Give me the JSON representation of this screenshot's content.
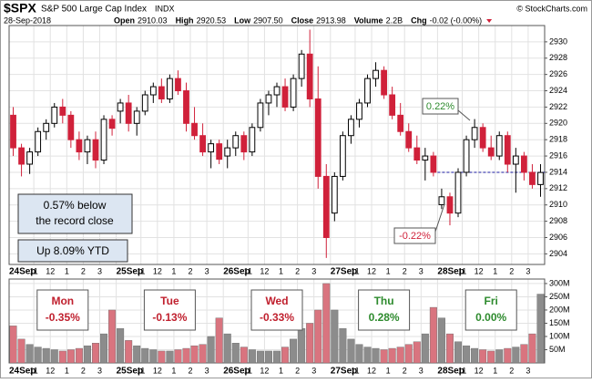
{
  "header": {
    "symbol": "$SPX",
    "name": "S&P 500 Large Cap Index",
    "exchange": "INDX",
    "date": "28-Sep-2018",
    "copyright": "© StockCharts.com",
    "stats": [
      {
        "label": "Open",
        "value": "2910.03"
      },
      {
        "label": "High",
        "value": "2920.53"
      },
      {
        "label": "Low",
        "value": "2907.50"
      },
      {
        "label": "Close",
        "value": "2913.98"
      },
      {
        "label": "Volume",
        "value": "2.2B"
      },
      {
        "label": "Chg",
        "value": "-0.02 (-0.00%)"
      }
    ]
  },
  "chart_data": [
    {
      "type": "candlestick",
      "open": [
        2921,
        2917,
        2915,
        2916.5,
        2919,
        2920,
        2922,
        2921,
        2918,
        2916.5,
        2918,
        2915.5,
        2920.5,
        2921.5,
        2922.5,
        2920,
        2921.5,
        2923.5,
        2924.5,
        2923,
        2925.5,
        2924,
        2920,
        2918.5,
        2916.5,
        2917.5,
        2916,
        2917,
        2918.5,
        2916.5,
        2919.5,
        2922.5,
        2923.5,
        2924.5,
        2922,
        2925.5,
        2928.5,
        2923,
        2913.5,
        2909,
        2913.5,
        2918.5,
        2920.5,
        2922.5,
        2925.5,
        2926.5,
        2923.5,
        2921,
        2919,
        2917,
        2915.5,
        2916,
        2910.03,
        2911,
        2909,
        2914,
        2918,
        2919.5,
        2917,
        2916,
        2918.5,
        2915,
        2916,
        2914,
        2912.5
      ],
      "high": [
        2922,
        2917.5,
        2917,
        2919.5,
        2920.5,
        2922.5,
        2923,
        2921.5,
        2919,
        2918.5,
        2919,
        2921,
        2921,
        2923,
        2923.5,
        2922,
        2924,
        2925,
        2925.5,
        2926,
        2926.5,
        2925,
        2922,
        2920,
        2918,
        2918,
        2918,
        2919,
        2919,
        2920,
        2923,
        2924,
        2925,
        2925.5,
        2926,
        2929,
        2931.5,
        2927,
        2915,
        2914,
        2919,
        2921,
        2923,
        2926,
        2927.5,
        2927,
        2924.5,
        2922.5,
        2920,
        2918.5,
        2917,
        2916.5,
        2912,
        2911.5,
        2914.5,
        2918.5,
        2920.53,
        2920,
        2918.5,
        2919,
        2919,
        2917,
        2916.5,
        2915,
        2915
      ],
      "low": [
        2916,
        2913.5,
        2913.8,
        2916,
        2918,
        2919.5,
        2920,
        2917,
        2915.5,
        2915,
        2914.5,
        2915,
        2918.5,
        2920,
        2919,
        2918.5,
        2921,
        2922.5,
        2922.5,
        2922.5,
        2923.5,
        2919,
        2918,
        2916,
        2914.5,
        2915,
        2914.5,
        2916,
        2915.5,
        2916,
        2919,
        2921,
        2922,
        2921.5,
        2921.5,
        2924.5,
        2922,
        2912,
        2903.5,
        2908,
        2913,
        2917.5,
        2919.5,
        2922,
        2924.5,
        2923,
        2920.5,
        2918.5,
        2916.5,
        2915,
        2913,
        2913.5,
        2909.5,
        2907.5,
        2908.5,
        2913.5,
        2917,
        2916.5,
        2915.5,
        2915.5,
        2914,
        2911.5,
        2913,
        2912,
        2911
      ],
      "close": [
        2917,
        2915,
        2916.5,
        2919,
        2920,
        2922,
        2921,
        2918,
        2916.5,
        2918,
        2915.5,
        2920.5,
        2919.4,
        2922.5,
        2920,
        2921.5,
        2923.5,
        2924.5,
        2923,
        2925.5,
        2924,
        2920,
        2918.5,
        2916.5,
        2917.5,
        2915.6,
        2917,
        2918.5,
        2916.5,
        2919.5,
        2922.5,
        2923.5,
        2924.5,
        2922,
        2925.5,
        2928.5,
        2923,
        2913.5,
        2906,
        2913.5,
        2918.5,
        2920.5,
        2922.5,
        2925.5,
        2926.5,
        2923.5,
        2921,
        2919,
        2917,
        2915.5,
        2916,
        2914,
        2911,
        2909,
        2914,
        2918,
        2919.5,
        2917,
        2916,
        2918.5,
        2915,
        2916,
        2914,
        2912.5,
        2913.98
      ],
      "up_color": "#000000",
      "down_color": "#d0213a",
      "ylim": [
        2902.7,
        2932
      ],
      "yticks": [
        2904,
        2906,
        2908,
        2910,
        2912,
        2914,
        2916,
        2918,
        2920,
        2922,
        2924,
        2926,
        2928,
        2930
      ],
      "xticks": [
        {
          "value": 0,
          "label": "24Sep"
        },
        {
          "value": 3,
          "label": "11"
        },
        {
          "value": 5,
          "label": "12"
        },
        {
          "value": 7,
          "label": "1"
        },
        {
          "value": 9,
          "label": "2"
        },
        {
          "value": 11,
          "label": "3"
        },
        {
          "value": 13,
          "label": "25Sep"
        },
        {
          "value": 16,
          "label": "11"
        },
        {
          "value": 18,
          "label": "12"
        },
        {
          "value": 20,
          "label": "1"
        },
        {
          "value": 22,
          "label": "2"
        },
        {
          "value": 24,
          "label": "3"
        },
        {
          "value": 26,
          "label": "26Sep"
        },
        {
          "value": 29,
          "label": "11"
        },
        {
          "value": 31,
          "label": "12"
        },
        {
          "value": 33,
          "label": "1"
        },
        {
          "value": 35,
          "label": "2"
        },
        {
          "value": 37,
          "label": "3"
        },
        {
          "value": 39,
          "label": "27Sep"
        },
        {
          "value": 42,
          "label": "11"
        },
        {
          "value": 44,
          "label": "12"
        },
        {
          "value": 46,
          "label": "1"
        },
        {
          "value": 48,
          "label": "2"
        },
        {
          "value": 50,
          "label": "3"
        },
        {
          "value": 52,
          "label": "28Sep"
        },
        {
          "value": 55,
          "label": "11"
        },
        {
          "value": 57,
          "label": "12"
        },
        {
          "value": 59,
          "label": "1"
        },
        {
          "value": 61,
          "label": "2"
        },
        {
          "value": 63,
          "label": "3"
        }
      ],
      "grid": true,
      "reference_line": 2914,
      "annotations": [
        "0.57% below",
        "the record close",
        "Up 8.09% YTD"
      ],
      "callouts": [
        {
          "text": "0.22%",
          "color": "#2e8b2e"
        },
        {
          "text": "-0.22%",
          "color": "#d0213a"
        }
      ]
    },
    {
      "type": "bar",
      "values": [
        140,
        90,
        70,
        60,
        55,
        50,
        45,
        50,
        55,
        65,
        75,
        110,
        200,
        130,
        85,
        65,
        55,
        50,
        45,
        45,
        50,
        55,
        65,
        70,
        100,
        170,
        110,
        75,
        60,
        50,
        45,
        45,
        45,
        60,
        90,
        130,
        150,
        200,
        300,
        200,
        130,
        90,
        70,
        60,
        55,
        50,
        55,
        60,
        70,
        80,
        110,
        210,
        170,
        110,
        80,
        65,
        55,
        50,
        45,
        50,
        55,
        60,
        70,
        110,
        260
      ],
      "up_color": "#8c8c8c",
      "down_color": "#d9747f",
      "ylim": [
        0,
        317
      ],
      "yticks": [
        {
          "value": 50,
          "label": "50M"
        },
        {
          "value": 100,
          "label": "100M"
        },
        {
          "value": 150,
          "label": "150M"
        },
        {
          "value": 200,
          "label": "200M"
        },
        {
          "value": 250,
          "label": "250M"
        },
        {
          "value": 300,
          "label": "300M"
        }
      ],
      "xticks": [
        {
          "value": 0,
          "label": "24Sep"
        },
        {
          "value": 3,
          "label": "11"
        },
        {
          "value": 5,
          "label": "12"
        },
        {
          "value": 7,
          "label": "1"
        },
        {
          "value": 9,
          "label": "2"
        },
        {
          "value": 11,
          "label": "3"
        },
        {
          "value": 13,
          "label": "25Sep"
        },
        {
          "value": 16,
          "label": "11"
        },
        {
          "value": 18,
          "label": "12"
        },
        {
          "value": 20,
          "label": "1"
        },
        {
          "value": 22,
          "label": "2"
        },
        {
          "value": 24,
          "label": "3"
        },
        {
          "value": 26,
          "label": "26Sep"
        },
        {
          "value": 29,
          "label": "11"
        },
        {
          "value": 31,
          "label": "12"
        },
        {
          "value": 33,
          "label": "1"
        },
        {
          "value": 35,
          "label": "2"
        },
        {
          "value": 37,
          "label": "3"
        },
        {
          "value": 39,
          "label": "27Sep"
        },
        {
          "value": 42,
          "label": "11"
        },
        {
          "value": 44,
          "label": "12"
        },
        {
          "value": 46,
          "label": "1"
        },
        {
          "value": 48,
          "label": "2"
        },
        {
          "value": 50,
          "label": "3"
        },
        {
          "value": 52,
          "label": "28Sep"
        },
        {
          "value": 55,
          "label": "11"
        },
        {
          "value": 57,
          "label": "12"
        },
        {
          "value": 59,
          "label": "1"
        },
        {
          "value": 61,
          "label": "2"
        },
        {
          "value": 63,
          "label": "3"
        }
      ],
      "grid": true,
      "day_boxes": [
        {
          "day": "Mon",
          "change": "-0.35%",
          "color": "#c0202e"
        },
        {
          "day": "Tue",
          "change": "-0.13%",
          "color": "#c0202e"
        },
        {
          "day": "Wed",
          "change": "-0.33%",
          "color": "#c0202e"
        },
        {
          "day": "Thu",
          "change": "0.28%",
          "color": "#2e8b2e"
        },
        {
          "day": "Fri",
          "change": "0.00%",
          "color": "#2e8b2e"
        }
      ]
    }
  ]
}
